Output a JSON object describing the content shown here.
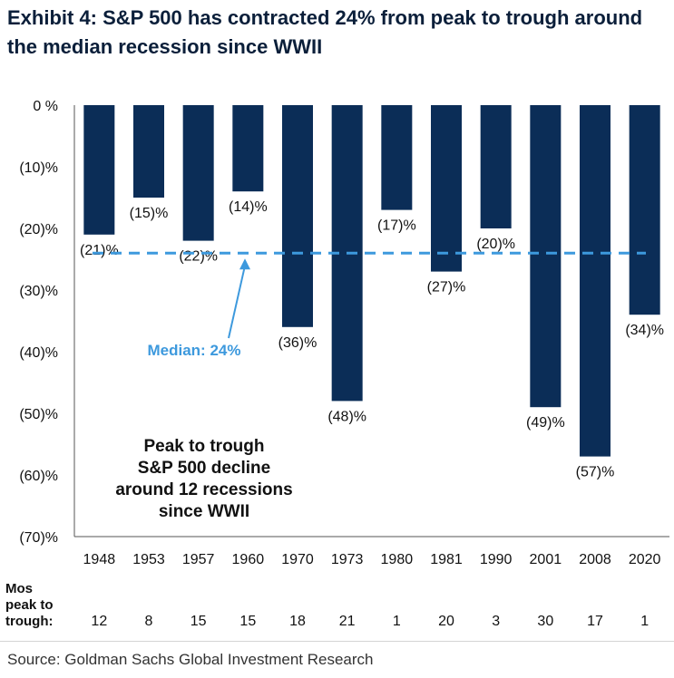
{
  "title": "Exhibit 4: S&P 500 has contracted 24% from peak to trough around the median recession since WWII",
  "source": "Source: Goldman Sachs Global Investment Research",
  "colors": {
    "bar": "#0b2d57",
    "median_line": "#3d99dd",
    "median_text": "#3d99dd",
    "axis": "#555555"
  },
  "chart_data": {
    "type": "bar",
    "title": "Exhibit 4: S&P 500 has contracted 24% from peak to trough around the median recession since WWII",
    "categories": [
      "1948",
      "1953",
      "1957",
      "1960",
      "1970",
      "1973",
      "1980",
      "1981",
      "1990",
      "2001",
      "2008",
      "2020"
    ],
    "values": [
      -21,
      -15,
      -22,
      -14,
      -36,
      -48,
      -17,
      -27,
      -20,
      -49,
      -57,
      -34
    ],
    "value_labels": [
      "(21)%",
      "(15)%",
      "(22)%",
      "(14)%",
      "(36)%",
      "(48)%",
      "(17)%",
      "(27)%",
      "(20)%",
      "(49)%",
      "(57)%",
      "(34)%"
    ],
    "ylim": [
      -70,
      0
    ],
    "yticks": [
      0,
      -10,
      -20,
      -30,
      -40,
      -50,
      -60,
      -70
    ],
    "ytick_labels": [
      "0 %",
      "(10)%",
      "(20)%",
      "(30)%",
      "(40)%",
      "(50)%",
      "(60)%",
      "(70)%"
    ],
    "median": {
      "value": -24,
      "label": "Median: 24%"
    },
    "annotation": "Peak to trough\nS&P 500 decline\naround 12 recessions\nsince WWII",
    "months_row": {
      "label": "Mos\npeak to\ntrough:",
      "values": [
        12,
        8,
        15,
        15,
        18,
        21,
        1,
        20,
        3,
        30,
        17,
        1
      ]
    },
    "grid": false,
    "legend": "none"
  }
}
